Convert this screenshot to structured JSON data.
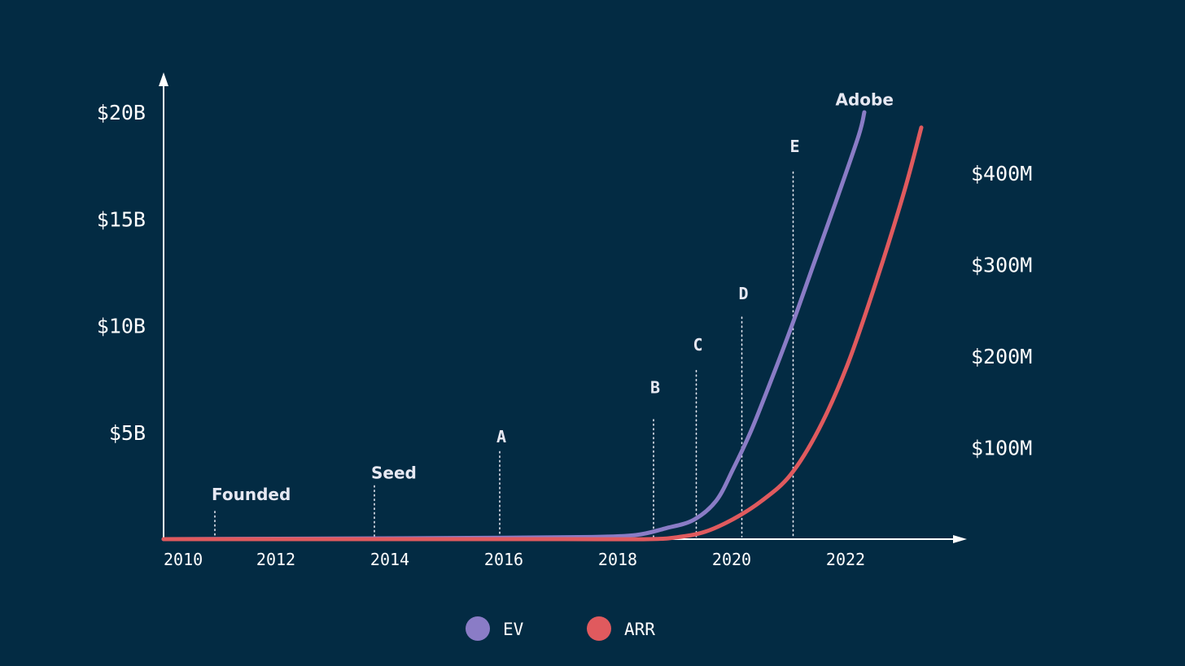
{
  "chart_data": {
    "type": "line",
    "x_axis": {
      "range": [
        2010,
        2023.5
      ],
      "ticks": [
        2010,
        2012,
        2014,
        2016,
        2018,
        2020,
        2022
      ],
      "tick_labels": [
        "2010",
        "2012",
        "2014",
        "2016",
        "2018",
        "2020",
        "2022"
      ]
    },
    "y_axis_left": {
      "range": [
        0,
        20
      ],
      "unit": "B",
      "ticks": [
        5,
        10,
        15,
        20
      ],
      "tick_labels": [
        "$5B",
        "$10B",
        "$15B",
        "$20B"
      ]
    },
    "y_axis_right": {
      "range": [
        0,
        480
      ],
      "unit": "M",
      "ticks": [
        100,
        200,
        300,
        400
      ],
      "tick_labels": [
        "$100M",
        "$200M",
        "$300M",
        "$400M"
      ]
    },
    "series": [
      {
        "name": "EV",
        "axis": "left",
        "color": "#8a7cc6",
        "x": [
          2010.0,
          2012.0,
          2014.0,
          2016.0,
          2017.5,
          2018.3,
          2018.8,
          2019.3,
          2019.7,
          2020.0,
          2020.3,
          2020.6,
          2021.0,
          2021.4,
          2021.8,
          2022.2,
          2022.3
        ],
        "values": [
          0,
          0.02,
          0.04,
          0.07,
          0.1,
          0.2,
          0.5,
          0.9,
          1.8,
          3.3,
          5.0,
          7.0,
          9.8,
          12.8,
          15.8,
          18.9,
          20.0
        ]
      },
      {
        "name": "ARR",
        "axis": "right",
        "color": "#e05a5e",
        "x": [
          2010.0,
          2014.0,
          2017.0,
          2018.5,
          2019.0,
          2019.5,
          2020.0,
          2020.5,
          2021.0,
          2021.5,
          2022.0,
          2022.5,
          2023.0,
          2023.3
        ],
        "values": [
          0,
          0,
          0,
          0,
          2,
          8,
          22,
          42,
          70,
          120,
          190,
          280,
          380,
          450
        ]
      }
    ],
    "annotations": [
      {
        "label": "Founded",
        "x": 2010.9,
        "style": "word",
        "y": 2.1,
        "line_top": 1.3
      },
      {
        "label": "Seed",
        "x": 2013.7,
        "style": "word",
        "y": 3.1,
        "line_top": 2.5
      },
      {
        "label": "A",
        "x": 2015.9,
        "style": "letter",
        "y": 4.8,
        "line_top": 4.1
      },
      {
        "label": "B",
        "x": 2018.6,
        "style": "letter",
        "y": 7.1,
        "line_top": 5.6
      },
      {
        "label": "C",
        "x": 2019.35,
        "style": "letter",
        "y": 9.1,
        "line_top": 7.9
      },
      {
        "label": "D",
        "x": 2020.15,
        "style": "letter",
        "y": 11.5,
        "line_top": 10.4
      },
      {
        "label": "E",
        "x": 2021.05,
        "style": "letter",
        "y": 18.4,
        "line_top": 17.2
      },
      {
        "label": "Adobe",
        "x": 2021.85,
        "style": "word-white",
        "y": 20.6,
        "line_top": null
      }
    ],
    "legend": {
      "placement": "bottom-center",
      "items": [
        {
          "name": "EV",
          "color": "#8a7cc6"
        },
        {
          "name": "ARR",
          "color": "#e05a5e"
        }
      ]
    },
    "grid": false
  }
}
